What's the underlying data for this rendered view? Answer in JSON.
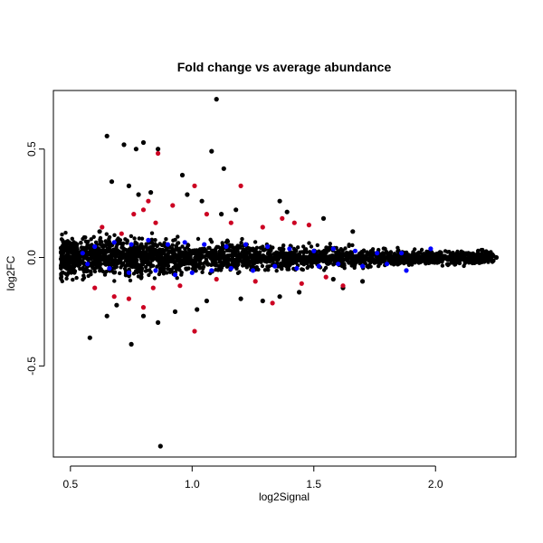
{
  "chart_data": {
    "type": "scatter",
    "title": "Fold change vs average abundance",
    "xlabel": "log2Signal",
    "ylabel": "log2FC",
    "xlim": [
      0.43,
      2.33
    ],
    "ylim": [
      -0.92,
      0.77
    ],
    "x_ticks": [
      "0.5",
      "1.0",
      "1.5",
      "2.0"
    ],
    "y_ticks": [
      "-0.5",
      "0.0",
      "0.5"
    ],
    "grid": false,
    "legend": "none",
    "colors": {
      "background": "#000000",
      "highlight": "#0000ff",
      "significant": "#cc0022"
    },
    "series": [
      {
        "color": "#000000",
        "points": [
          [
            0.48,
            0.0
          ],
          [
            0.62,
            0.12
          ],
          [
            0.65,
            0.56
          ],
          [
            0.72,
            0.52
          ],
          [
            0.77,
            0.5
          ],
          [
            0.8,
            0.53
          ],
          [
            0.86,
            0.5
          ],
          [
            0.67,
            0.35
          ],
          [
            0.74,
            0.33
          ],
          [
            0.78,
            0.29
          ],
          [
            0.83,
            0.3
          ],
          [
            0.96,
            0.38
          ],
          [
            1.1,
            0.73
          ],
          [
            1.08,
            0.49
          ],
          [
            1.13,
            0.41
          ],
          [
            0.98,
            0.29
          ],
          [
            1.04,
            0.26
          ],
          [
            1.12,
            0.2
          ],
          [
            1.18,
            0.22
          ],
          [
            1.36,
            0.26
          ],
          [
            1.39,
            0.21
          ],
          [
            1.54,
            0.18
          ],
          [
            1.66,
            0.12
          ],
          [
            0.58,
            -0.37
          ],
          [
            0.75,
            -0.4
          ],
          [
            0.87,
            -0.87
          ],
          [
            0.65,
            -0.27
          ],
          [
            0.69,
            -0.22
          ],
          [
            0.8,
            -0.27
          ],
          [
            0.86,
            -0.3
          ],
          [
            0.93,
            -0.25
          ],
          [
            1.02,
            -0.24
          ],
          [
            1.06,
            -0.2
          ],
          [
            1.2,
            -0.19
          ],
          [
            1.29,
            -0.2
          ],
          [
            1.36,
            -0.18
          ],
          [
            1.44,
            -0.16
          ],
          [
            1.58,
            -0.1
          ],
          [
            1.62,
            -0.14
          ],
          [
            1.7,
            -0.11
          ],
          [
            2.25,
            0.0
          ],
          [
            2.2,
            0.01
          ],
          [
            2.14,
            -0.01
          ]
        ]
      },
      {
        "color": "#0000ff",
        "points": [
          [
            0.55,
            0.02
          ],
          [
            0.6,
            0.05
          ],
          [
            0.68,
            0.07
          ],
          [
            0.75,
            0.06
          ],
          [
            0.82,
            0.08
          ],
          [
            0.9,
            0.06
          ],
          [
            0.97,
            0.07
          ],
          [
            1.05,
            0.06
          ],
          [
            1.14,
            0.05
          ],
          [
            1.22,
            0.06
          ],
          [
            1.31,
            0.05
          ],
          [
            1.4,
            0.04
          ],
          [
            1.5,
            0.03
          ],
          [
            1.58,
            0.04
          ],
          [
            1.67,
            0.03
          ],
          [
            1.76,
            0.02
          ],
          [
            1.86,
            0.02
          ],
          [
            1.98,
            0.04
          ],
          [
            0.57,
            -0.03
          ],
          [
            0.66,
            -0.05
          ],
          [
            0.74,
            -0.07
          ],
          [
            0.85,
            -0.06
          ],
          [
            0.93,
            -0.08
          ],
          [
            1.0,
            -0.07
          ],
          [
            1.08,
            -0.06
          ],
          [
            1.16,
            -0.05
          ],
          [
            1.25,
            -0.06
          ],
          [
            1.34,
            -0.04
          ],
          [
            1.43,
            -0.05
          ],
          [
            1.52,
            -0.04
          ],
          [
            1.6,
            -0.03
          ],
          [
            1.7,
            -0.04
          ],
          [
            1.8,
            -0.03
          ],
          [
            1.88,
            -0.06
          ]
        ]
      },
      {
        "color": "#cc0022",
        "points": [
          [
            0.86,
            0.48
          ],
          [
            1.2,
            0.33
          ],
          [
            1.01,
            0.33
          ],
          [
            0.82,
            0.26
          ],
          [
            0.76,
            0.2
          ],
          [
            0.8,
            0.22
          ],
          [
            0.85,
            0.16
          ],
          [
            0.92,
            0.24
          ],
          [
            1.06,
            0.2
          ],
          [
            1.16,
            0.16
          ],
          [
            1.29,
            0.14
          ],
          [
            1.37,
            0.18
          ],
          [
            1.42,
            0.16
          ],
          [
            1.48,
            0.15
          ],
          [
            0.63,
            0.14
          ],
          [
            0.71,
            0.11
          ],
          [
            0.6,
            -0.14
          ],
          [
            0.68,
            -0.18
          ],
          [
            0.74,
            -0.19
          ],
          [
            0.8,
            -0.23
          ],
          [
            0.84,
            -0.14
          ],
          [
            0.95,
            -0.13
          ],
          [
            1.01,
            -0.34
          ],
          [
            1.1,
            -0.1
          ],
          [
            1.26,
            -0.11
          ],
          [
            1.33,
            -0.21
          ],
          [
            1.45,
            -0.12
          ],
          [
            1.55,
            -0.09
          ],
          [
            1.62,
            -0.13
          ]
        ]
      }
    ]
  }
}
